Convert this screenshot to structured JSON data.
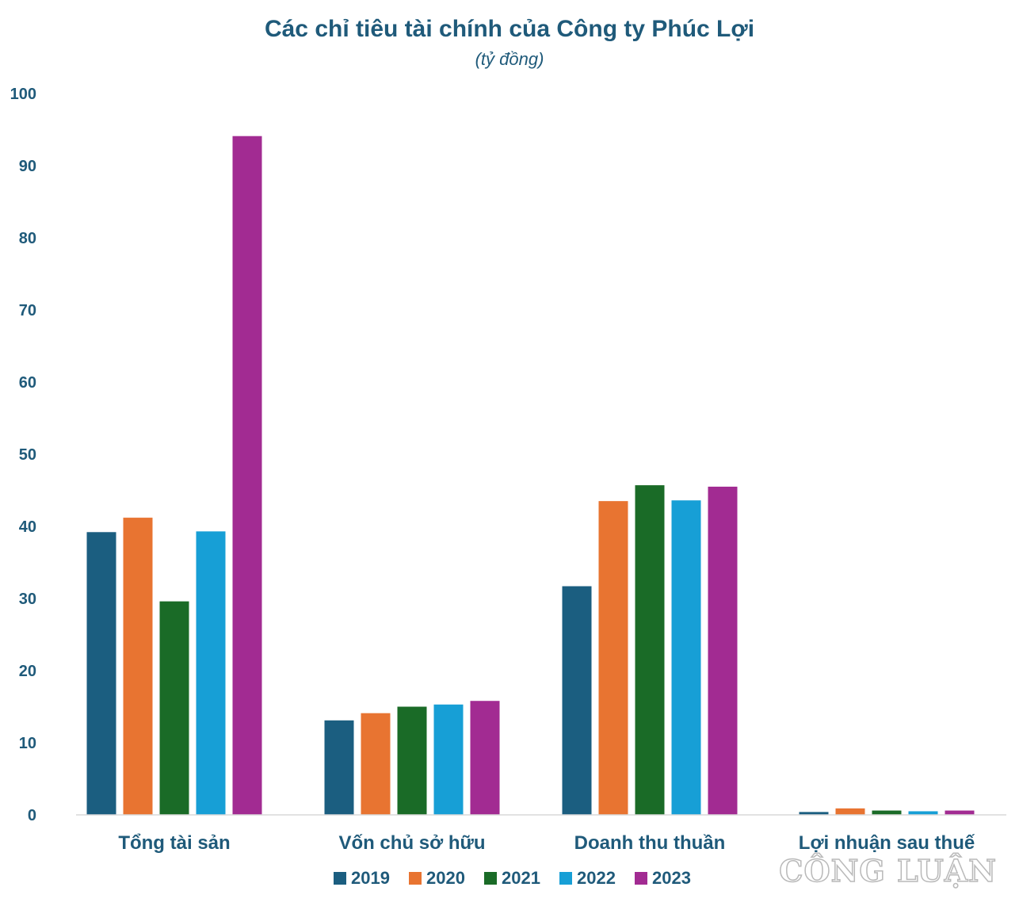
{
  "chart_data": {
    "type": "bar",
    "title": "Các chỉ tiêu tài chính của Công ty Phúc Lợi",
    "subtitle": "(tỷ đồng)",
    "categories": [
      "Tổng tài sản",
      "Vốn chủ sở hữu",
      "Doanh thu thuần",
      "Lợi nhuận sau thuế"
    ],
    "series": [
      {
        "name": "2019",
        "color": "#1b5e80",
        "values": [
          39.2,
          13.1,
          31.7,
          0.4
        ]
      },
      {
        "name": "2020",
        "color": "#e87431",
        "values": [
          41.2,
          14.1,
          43.5,
          0.9
        ]
      },
      {
        "name": "2021",
        "color": "#1a6b27",
        "values": [
          29.6,
          15.0,
          45.7,
          0.6
        ]
      },
      {
        "name": "2022",
        "color": "#179fd6",
        "values": [
          39.3,
          15.3,
          43.6,
          0.5
        ]
      },
      {
        "name": "2023",
        "color": "#a22b92",
        "values": [
          94.1,
          15.8,
          45.5,
          0.6
        ]
      }
    ],
    "yticks": [
      "0",
      "10",
      "20",
      "30",
      "40",
      "50",
      "60",
      "70",
      "80",
      "90",
      "100"
    ],
    "ylim": [
      0,
      100
    ],
    "grid": false,
    "legend_position": "bottom"
  },
  "watermark": "CÔNG LUẬN"
}
